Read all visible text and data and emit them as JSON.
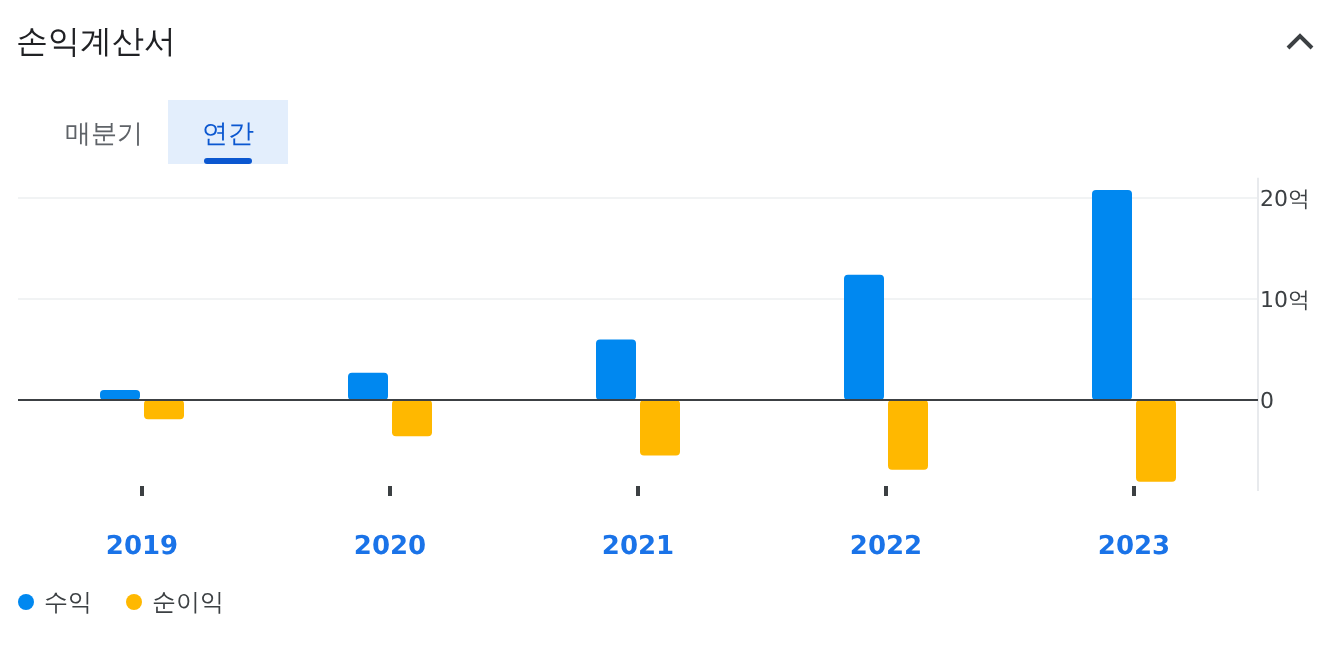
{
  "chart_data": {
    "type": "bar",
    "title": "손익계산서",
    "annotations": [
      "매분기",
      "연간"
    ],
    "categories": [
      "2019",
      "2020",
      "2021",
      "2022",
      "2023"
    ],
    "series": [
      {
        "name": "수익",
        "color": "#0088f0",
        "values": [
          1.0,
          2.7,
          6.0,
          12.4,
          20.8
        ]
      },
      {
        "name": "순이익",
        "color": "#ffb800",
        "values": [
          -1.9,
          -3.6,
          -5.5,
          -6.9,
          -8.1
        ]
      }
    ],
    "ylim": [
      -9,
      22
    ],
    "yticks": [
      0,
      {
        "value": 10,
        "label": "10억"
      },
      {
        "value": 20,
        "label": "20억"
      }
    ],
    "grid": "y",
    "legend": "bottom left"
  }
}
